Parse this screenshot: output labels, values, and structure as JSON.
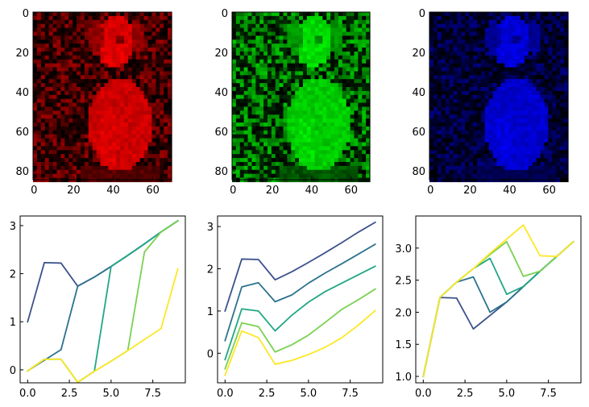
{
  "chart_data": [
    {
      "type": "heatmap",
      "channel": "red",
      "color": "#ff0000",
      "image_size": [
        70,
        85
      ],
      "xticks": [
        "0",
        "20",
        "40",
        "60"
      ],
      "yticks": [
        "0",
        "20",
        "40",
        "60",
        "80"
      ]
    },
    {
      "type": "heatmap",
      "channel": "green",
      "color": "#00ff00",
      "image_size": [
        70,
        85
      ],
      "xticks": [
        "0",
        "20",
        "40",
        "60"
      ],
      "yticks": [
        "0",
        "20",
        "40",
        "60",
        "80"
      ]
    },
    {
      "type": "heatmap",
      "channel": "blue",
      "color": "#0000ff",
      "image_size": [
        70,
        85
      ],
      "xticks": [
        "0",
        "20",
        "40",
        "60"
      ],
      "yticks": [
        "0",
        "20",
        "40",
        "60",
        "80"
      ]
    },
    {
      "type": "line",
      "x": [
        0,
        1,
        2,
        3,
        4,
        5,
        6,
        7,
        8,
        9
      ],
      "xlim": [
        -0.45,
        9.45
      ],
      "ylim": [
        -0.27,
        3.2
      ],
      "xticks": [
        "0.0",
        "2.5",
        "5.0",
        "7.5"
      ],
      "yticks": [
        "0",
        "1",
        "2",
        "3"
      ],
      "series": [
        {
          "color": "#3b528b",
          "values": [
            1.0,
            2.23,
            2.22,
            1.74,
            1.93,
            2.15,
            2.38,
            2.62,
            2.87,
            3.1
          ]
        },
        {
          "color": "#2c728e",
          "values": [
            -0.02,
            0.2,
            0.42,
            1.74,
            1.93,
            2.15,
            2.38,
            2.62,
            2.87,
            3.1
          ]
        },
        {
          "color": "#21a685",
          "values": [
            -0.02,
            0.22,
            0.22,
            -0.26,
            -0.03,
            2.15,
            2.38,
            2.62,
            2.87,
            3.1
          ]
        },
        {
          "color": "#7ad151",
          "values": [
            -0.02,
            0.22,
            0.22,
            -0.26,
            -0.03,
            0.18,
            0.4,
            2.45,
            2.87,
            3.1
          ]
        },
        {
          "color": "#fde725",
          "values": [
            -0.02,
            0.22,
            0.22,
            -0.26,
            -0.03,
            0.18,
            0.4,
            0.63,
            0.86,
            2.1
          ]
        }
      ]
    },
    {
      "type": "line",
      "x": [
        0,
        1,
        2,
        3,
        4,
        5,
        6,
        7,
        8,
        9
      ],
      "xlim": [
        -0.45,
        9.45
      ],
      "ylim": [
        -0.7,
        3.25
      ],
      "xticks": [
        "0.0",
        "2.5",
        "5.0",
        "7.5"
      ],
      "yticks": [
        "0",
        "1",
        "2",
        "3"
      ],
      "series": [
        {
          "color": "#3b528b",
          "values": [
            1.0,
            2.23,
            2.22,
            1.74,
            1.93,
            2.15,
            2.38,
            2.62,
            2.87,
            3.1
          ]
        },
        {
          "color": "#2c728e",
          "values": [
            0.3,
            1.57,
            1.67,
            1.22,
            1.38,
            1.66,
            1.9,
            2.12,
            2.35,
            2.58
          ]
        },
        {
          "color": "#21a685",
          "values": [
            -0.15,
            1.05,
            1.0,
            0.53,
            0.9,
            1.21,
            1.46,
            1.66,
            1.86,
            2.06
          ]
        },
        {
          "color": "#7ad151",
          "values": [
            -0.37,
            0.72,
            0.63,
            0.03,
            0.2,
            0.43,
            0.73,
            1.04,
            1.27,
            1.52
          ]
        },
        {
          "color": "#fde725",
          "values": [
            -0.52,
            0.53,
            0.37,
            -0.26,
            -0.17,
            -0.03,
            0.14,
            0.37,
            0.67,
            1.01
          ]
        }
      ]
    },
    {
      "type": "line",
      "x": [
        0,
        1,
        2,
        3,
        4,
        5,
        6,
        7,
        8,
        9
      ],
      "xlim": [
        -0.45,
        9.45
      ],
      "ylim": [
        0.9,
        3.5
      ],
      "xticks": [
        "0.0",
        "2.5",
        "5.0",
        "7.5"
      ],
      "yticks": [
        "1.0",
        "1.5",
        "2.0",
        "2.5",
        "3.0"
      ],
      "series": [
        {
          "color": "#3b528b",
          "values": [
            1.0,
            2.23,
            2.22,
            1.74,
            1.95,
            2.16,
            2.4,
            2.64,
            2.87,
            3.1
          ]
        },
        {
          "color": "#2c728e",
          "values": [
            1.0,
            2.23,
            2.47,
            2.55,
            2.0,
            2.16,
            2.4,
            2.64,
            2.87,
            3.1
          ]
        },
        {
          "color": "#21a685",
          "values": [
            1.0,
            2.23,
            2.47,
            2.68,
            2.84,
            2.28,
            2.4,
            2.64,
            2.87,
            3.1
          ]
        },
        {
          "color": "#7ad151",
          "values": [
            1.0,
            2.23,
            2.47,
            2.68,
            2.9,
            3.1,
            2.56,
            2.64,
            2.87,
            3.1
          ]
        },
        {
          "color": "#fde725",
          "values": [
            1.0,
            2.23,
            2.47,
            2.68,
            2.92,
            3.14,
            3.36,
            2.88,
            2.87,
            3.1
          ]
        }
      ]
    }
  ]
}
